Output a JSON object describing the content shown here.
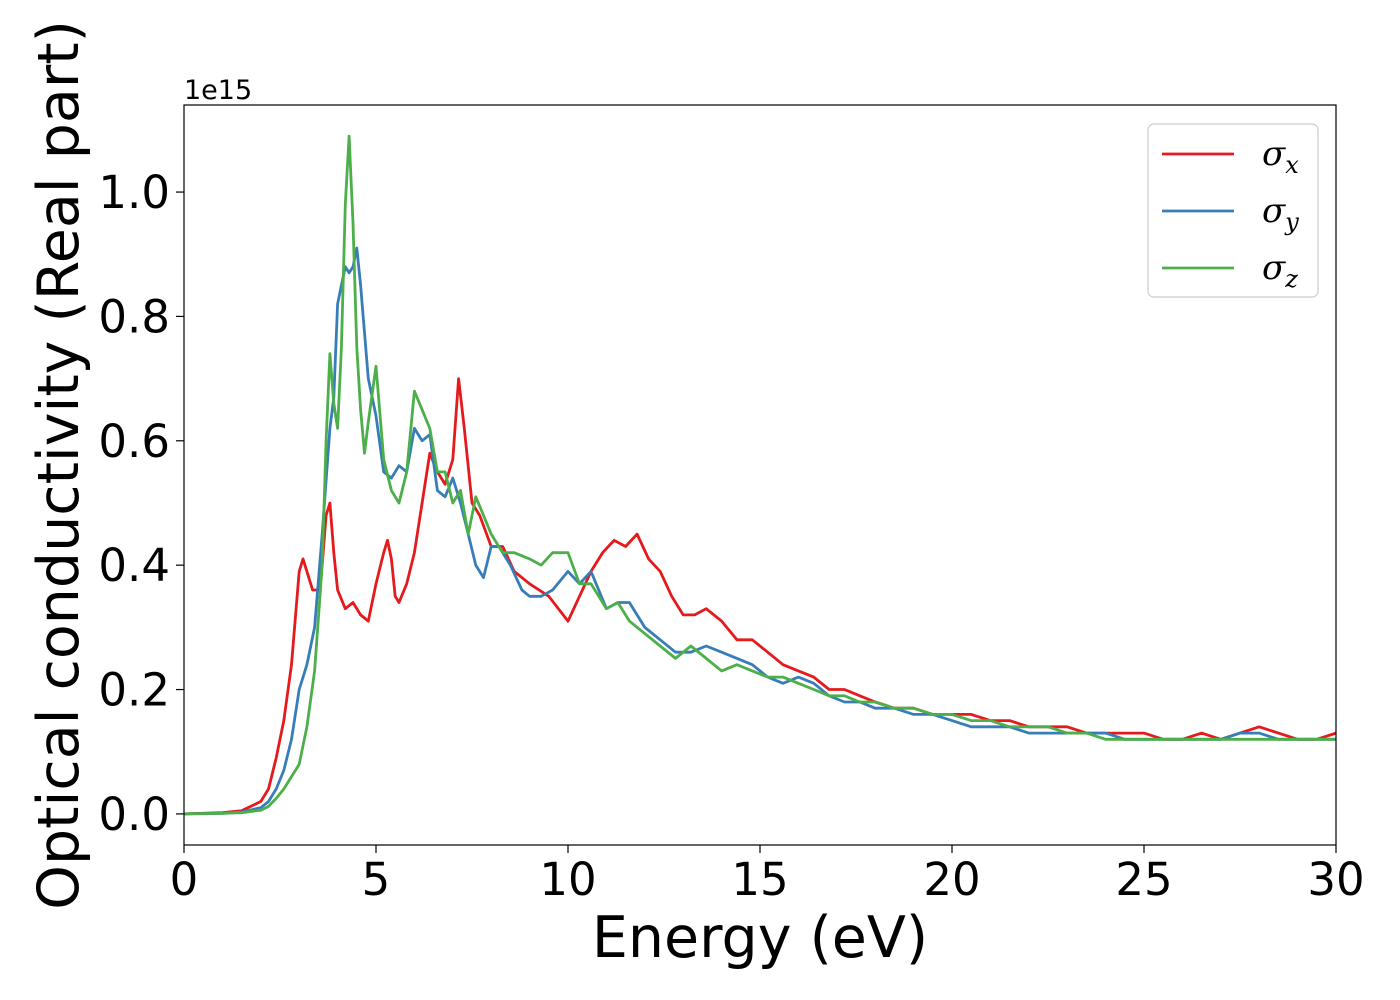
{
  "chart_data": {
    "type": "line",
    "xlabel": "Energy (eV)",
    "ylabel": "Optical conductivity (Real part)",
    "y_offset_label": "1e15",
    "xlim": [
      0,
      30
    ],
    "ylim": [
      -0.05,
      1.14
    ],
    "xticks": [
      0,
      5,
      10,
      15,
      20,
      25,
      30
    ],
    "xtick_labels": [
      "0",
      "5",
      "10",
      "15",
      "20",
      "25",
      "30"
    ],
    "yticks": [
      0.0,
      0.2,
      0.4,
      0.6,
      0.8,
      1.0
    ],
    "ytick_labels": [
      "0.0",
      "0.2",
      "0.4",
      "0.6",
      "0.8",
      "1.0"
    ],
    "grid": false,
    "legend_position": "top-right",
    "series": [
      {
        "name": "σx",
        "legend_symbol": "σ",
        "legend_subscript": "x",
        "color": "#e41a1c",
        "x": [
          0,
          1,
          1.5,
          2,
          2.2,
          2.4,
          2.6,
          2.8,
          3.0,
          3.1,
          3.2,
          3.35,
          3.5,
          3.6,
          3.7,
          3.8,
          3.9,
          4.0,
          4.2,
          4.4,
          4.6,
          4.8,
          5.0,
          5.2,
          5.3,
          5.4,
          5.5,
          5.6,
          5.8,
          6.0,
          6.2,
          6.4,
          6.6,
          6.8,
          7.0,
          7.15,
          7.3,
          7.5,
          7.7,
          8.0,
          8.3,
          8.6,
          9.0,
          9.5,
          10.0,
          10.3,
          10.6,
          10.9,
          11.2,
          11.5,
          11.8,
          12.1,
          12.4,
          12.7,
          13.0,
          13.3,
          13.6,
          14.0,
          14.4,
          14.8,
          15.2,
          15.6,
          16.0,
          16.4,
          16.8,
          17.2,
          17.6,
          18.0,
          18.5,
          19.0,
          19.5,
          20.0,
          20.5,
          21.0,
          21.5,
          22.0,
          22.5,
          23.0,
          23.5,
          24.0,
          24.5,
          25.0,
          25.5,
          26.0,
          26.5,
          27.0,
          27.5,
          28.0,
          28.5,
          29.0,
          29.5,
          30.0
        ],
        "y": [
          0.0,
          0.002,
          0.005,
          0.02,
          0.04,
          0.09,
          0.15,
          0.24,
          0.39,
          0.41,
          0.39,
          0.36,
          0.36,
          0.4,
          0.48,
          0.5,
          0.42,
          0.36,
          0.33,
          0.34,
          0.32,
          0.31,
          0.37,
          0.42,
          0.44,
          0.41,
          0.35,
          0.34,
          0.37,
          0.42,
          0.5,
          0.58,
          0.55,
          0.53,
          0.57,
          0.7,
          0.62,
          0.5,
          0.48,
          0.43,
          0.43,
          0.39,
          0.37,
          0.35,
          0.31,
          0.35,
          0.39,
          0.42,
          0.44,
          0.43,
          0.45,
          0.41,
          0.39,
          0.35,
          0.32,
          0.32,
          0.33,
          0.31,
          0.28,
          0.28,
          0.26,
          0.24,
          0.23,
          0.22,
          0.2,
          0.2,
          0.19,
          0.18,
          0.17,
          0.17,
          0.16,
          0.16,
          0.16,
          0.15,
          0.15,
          0.14,
          0.14,
          0.14,
          0.13,
          0.13,
          0.13,
          0.13,
          0.12,
          0.12,
          0.13,
          0.12,
          0.13,
          0.14,
          0.13,
          0.12,
          0.12,
          0.13
        ]
      },
      {
        "name": "σy",
        "legend_symbol": "σ",
        "legend_subscript": "y",
        "color": "#377eb8",
        "x": [
          0,
          1,
          1.5,
          2,
          2.2,
          2.4,
          2.6,
          2.8,
          3.0,
          3.2,
          3.4,
          3.6,
          3.8,
          3.9,
          4.0,
          4.1,
          4.2,
          4.3,
          4.4,
          4.5,
          4.6,
          4.8,
          5.0,
          5.2,
          5.4,
          5.6,
          5.8,
          6.0,
          6.2,
          6.4,
          6.6,
          6.8,
          7.0,
          7.2,
          7.4,
          7.6,
          7.8,
          8.0,
          8.2,
          8.5,
          8.8,
          9.0,
          9.3,
          9.6,
          10.0,
          10.3,
          10.6,
          11.0,
          11.3,
          11.6,
          12.0,
          12.4,
          12.8,
          13.2,
          13.6,
          14.0,
          14.4,
          14.8,
          15.2,
          15.6,
          16.0,
          16.4,
          16.8,
          17.2,
          17.6,
          18.0,
          18.5,
          19.0,
          19.5,
          20.0,
          20.5,
          21.0,
          21.5,
          22.0,
          22.5,
          23.0,
          23.5,
          24.0,
          24.5,
          25.0,
          25.5,
          26.0,
          26.5,
          27.0,
          27.5,
          28.0,
          28.5,
          29.0,
          29.5,
          30.0
        ],
        "y": [
          0.0,
          0.001,
          0.003,
          0.01,
          0.02,
          0.04,
          0.07,
          0.12,
          0.2,
          0.24,
          0.3,
          0.45,
          0.62,
          0.67,
          0.82,
          0.85,
          0.88,
          0.87,
          0.88,
          0.91,
          0.85,
          0.7,
          0.64,
          0.55,
          0.54,
          0.56,
          0.55,
          0.62,
          0.6,
          0.61,
          0.52,
          0.51,
          0.54,
          0.5,
          0.45,
          0.4,
          0.38,
          0.43,
          0.43,
          0.4,
          0.36,
          0.35,
          0.35,
          0.36,
          0.39,
          0.37,
          0.39,
          0.33,
          0.34,
          0.34,
          0.3,
          0.28,
          0.26,
          0.26,
          0.27,
          0.26,
          0.25,
          0.24,
          0.22,
          0.21,
          0.22,
          0.21,
          0.19,
          0.18,
          0.18,
          0.17,
          0.17,
          0.16,
          0.16,
          0.15,
          0.14,
          0.14,
          0.14,
          0.13,
          0.13,
          0.13,
          0.13,
          0.13,
          0.12,
          0.12,
          0.12,
          0.12,
          0.12,
          0.12,
          0.13,
          0.13,
          0.12,
          0.12,
          0.12,
          0.12
        ]
      },
      {
        "name": "σz",
        "legend_symbol": "σ",
        "legend_subscript": "z",
        "color": "#4daf4a",
        "x": [
          0,
          1,
          1.5,
          2,
          2.2,
          2.4,
          2.6,
          2.8,
          3.0,
          3.2,
          3.4,
          3.6,
          3.7,
          3.8,
          3.9,
          4.0,
          4.1,
          4.2,
          4.3,
          4.4,
          4.5,
          4.6,
          4.7,
          4.8,
          5.0,
          5.2,
          5.4,
          5.6,
          5.8,
          6.0,
          6.2,
          6.4,
          6.6,
          6.8,
          7.0,
          7.2,
          7.4,
          7.6,
          7.8,
          8.0,
          8.3,
          8.6,
          9.0,
          9.3,
          9.6,
          10.0,
          10.3,
          10.6,
          11.0,
          11.3,
          11.6,
          12.0,
          12.4,
          12.8,
          13.2,
          13.6,
          14.0,
          14.4,
          14.8,
          15.2,
          15.6,
          16.0,
          16.4,
          16.8,
          17.2,
          17.6,
          18.0,
          18.5,
          19.0,
          19.5,
          20.0,
          20.5,
          21.0,
          21.5,
          22.0,
          22.5,
          23.0,
          23.5,
          24.0,
          24.5,
          25.0,
          25.5,
          26.0,
          26.5,
          27.0,
          27.5,
          28.0,
          28.5,
          29.0,
          29.5,
          30.0
        ],
        "y": [
          0.0,
          0.001,
          0.002,
          0.006,
          0.012,
          0.025,
          0.04,
          0.06,
          0.08,
          0.14,
          0.23,
          0.4,
          0.6,
          0.74,
          0.66,
          0.62,
          0.75,
          0.98,
          1.09,
          0.95,
          0.75,
          0.65,
          0.58,
          0.63,
          0.72,
          0.57,
          0.52,
          0.5,
          0.55,
          0.68,
          0.65,
          0.62,
          0.55,
          0.55,
          0.5,
          0.52,
          0.45,
          0.51,
          0.48,
          0.45,
          0.42,
          0.42,
          0.41,
          0.4,
          0.42,
          0.42,
          0.37,
          0.37,
          0.33,
          0.34,
          0.31,
          0.29,
          0.27,
          0.25,
          0.27,
          0.25,
          0.23,
          0.24,
          0.23,
          0.22,
          0.22,
          0.21,
          0.2,
          0.19,
          0.19,
          0.18,
          0.18,
          0.17,
          0.17,
          0.16,
          0.16,
          0.15,
          0.15,
          0.14,
          0.14,
          0.14,
          0.13,
          0.13,
          0.12,
          0.12,
          0.12,
          0.12,
          0.12,
          0.12,
          0.12,
          0.12,
          0.12,
          0.12,
          0.12,
          0.12,
          0.12
        ]
      }
    ]
  }
}
